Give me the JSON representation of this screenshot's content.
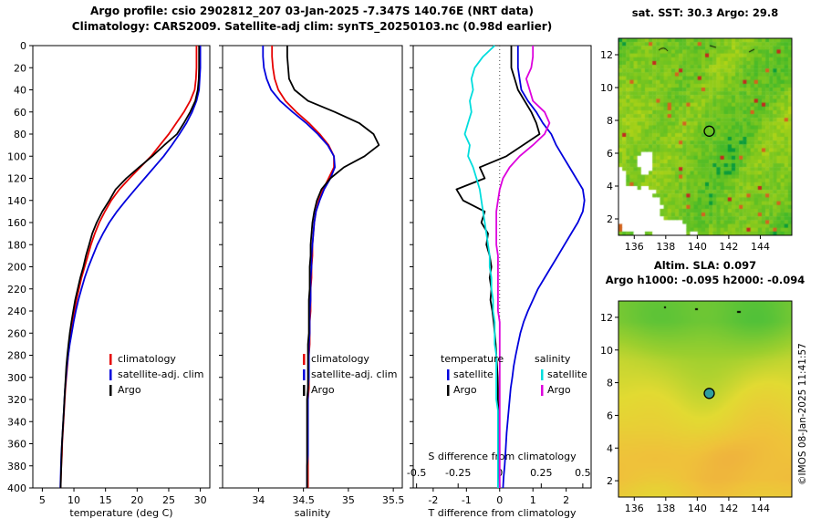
{
  "header": {
    "title_line1": "Argo profile: csio 2902812_207 03-Jan-2025 -7.347S 140.76E (NRT data)",
    "title_line2": "Climatology: CARS2009. Satellite-adj clim: synTS_20250103.nc (0.98d earlier)"
  },
  "watermark": "©IMOS 08-Jan-2025 11:41:57",
  "depths": [
    0,
    10,
    20,
    30,
    40,
    50,
    60,
    70,
    80,
    90,
    100,
    110,
    120,
    130,
    140,
    150,
    160,
    170,
    180,
    190,
    200,
    210,
    220,
    230,
    240,
    250,
    260,
    270,
    280,
    290,
    300,
    310,
    320,
    330,
    340,
    350,
    360,
    370,
    380,
    390,
    400
  ],
  "chart_data": [
    {
      "id": "temperature_profile",
      "type": "line",
      "xlabel": "temperature (deg C)",
      "xlim": [
        3.5,
        31.5
      ],
      "xticks": [
        5,
        10,
        15,
        20,
        25,
        30
      ],
      "ylim": [
        0,
        400
      ],
      "yticks": [
        0,
        20,
        40,
        60,
        80,
        100,
        120,
        140,
        160,
        180,
        200,
        220,
        240,
        260,
        280,
        300,
        320,
        340,
        360,
        380,
        400
      ],
      "legend": [
        {
          "label": "climatology",
          "color": "#e60000"
        },
        {
          "label": "satellite-adj. clim",
          "color": "#0000dd"
        },
        {
          "label": "Argo",
          "color": "#000000"
        }
      ],
      "series": [
        {
          "name": "climatology",
          "color": "#e60000",
          "values": [
            29.4,
            29.4,
            29.4,
            29.3,
            29.1,
            28.4,
            27.4,
            26.2,
            25.0,
            23.6,
            22.2,
            20.5,
            18.8,
            17.2,
            15.9,
            14.9,
            14.0,
            13.3,
            12.7,
            12.2,
            11.7,
            11.2,
            10.8,
            10.4,
            10.1,
            9.8,
            9.5,
            9.3,
            9.1,
            8.95,
            8.8,
            8.65,
            8.55,
            8.45,
            8.35,
            8.25,
            8.15,
            8.1,
            8.0,
            7.95,
            7.9
          ]
        },
        {
          "name": "satellite-adj. clim",
          "color": "#0000dd",
          "values": [
            30.0,
            30.0,
            30.0,
            29.9,
            29.8,
            29.4,
            28.7,
            27.8,
            26.7,
            25.5,
            24.2,
            22.7,
            21.2,
            19.7,
            18.2,
            16.8,
            15.6,
            14.6,
            13.7,
            13.0,
            12.3,
            11.7,
            11.2,
            10.7,
            10.3,
            9.95,
            9.65,
            9.35,
            9.1,
            8.9,
            8.75,
            8.6,
            8.5,
            8.4,
            8.3,
            8.2,
            8.1,
            8.0,
            7.95,
            7.9,
            7.85
          ]
        },
        {
          "name": "Argo",
          "color": "#000000",
          "values": [
            29.8,
            29.8,
            29.8,
            29.75,
            29.6,
            29.2,
            28.4,
            27.4,
            26.3,
            24.3,
            22.4,
            20.3,
            18.3,
            16.6,
            15.6,
            14.5,
            13.6,
            12.9,
            12.4,
            11.9,
            11.5,
            11.0,
            10.6,
            10.2,
            9.9,
            9.6,
            9.35,
            9.15,
            8.95,
            8.8,
            8.7,
            8.6,
            8.5,
            8.4,
            8.3,
            8.2,
            8.1,
            8.05,
            8.0,
            7.95,
            7.9
          ]
        }
      ]
    },
    {
      "id": "salinity_profile",
      "type": "line",
      "xlabel": "salinity",
      "xlim": [
        33.6,
        35.6
      ],
      "xticks": [
        34,
        34.5,
        35,
        35.5
      ],
      "ylim": [
        0,
        400
      ],
      "yticks": [
        0,
        20,
        40,
        60,
        80,
        100,
        120,
        140,
        160,
        180,
        200,
        220,
        240,
        260,
        280,
        300,
        320,
        340,
        360,
        380,
        400
      ],
      "legend": [
        {
          "label": "climatology",
          "color": "#e60000"
        },
        {
          "label": "satellite-adj. clim",
          "color": "#0000dd"
        },
        {
          "label": "Argo",
          "color": "#000000"
        }
      ],
      "series": [
        {
          "name": "climatology",
          "color": "#e60000",
          "values": [
            34.15,
            34.15,
            34.16,
            34.18,
            34.22,
            34.3,
            34.42,
            34.56,
            34.68,
            34.78,
            34.84,
            34.84,
            34.78,
            34.72,
            34.67,
            34.64,
            34.62,
            34.61,
            34.6,
            34.6,
            34.59,
            34.59,
            34.58,
            34.58,
            34.58,
            34.57,
            34.57,
            34.57,
            34.56,
            34.56,
            34.56,
            34.56,
            34.55,
            34.55,
            34.55,
            34.55,
            34.55,
            34.55,
            34.55,
            34.55,
            34.55
          ]
        },
        {
          "name": "satellite-adj. clim",
          "color": "#0000dd",
          "values": [
            34.05,
            34.05,
            34.06,
            34.09,
            34.14,
            34.24,
            34.38,
            34.53,
            34.66,
            34.77,
            34.84,
            34.85,
            34.8,
            34.73,
            34.68,
            34.64,
            34.62,
            34.61,
            34.6,
            34.59,
            34.59,
            34.58,
            34.58,
            34.58,
            34.57,
            34.57,
            34.57,
            34.56,
            34.56,
            34.56,
            34.56,
            34.55,
            34.55,
            34.55,
            34.55,
            34.55,
            34.55,
            34.55,
            34.54,
            34.54,
            34.54
          ]
        },
        {
          "name": "Argo",
          "color": "#000000",
          "values": [
            34.32,
            34.32,
            34.33,
            34.34,
            34.4,
            34.55,
            34.85,
            35.12,
            35.28,
            35.34,
            35.18,
            34.95,
            34.8,
            34.7,
            34.65,
            34.62,
            34.6,
            34.59,
            34.58,
            34.58,
            34.57,
            34.57,
            34.57,
            34.56,
            34.56,
            34.56,
            34.56,
            34.55,
            34.55,
            34.55,
            34.55,
            34.55,
            34.54,
            34.54,
            34.54,
            34.54,
            34.54,
            34.54,
            34.54,
            34.54,
            34.54
          ]
        }
      ]
    },
    {
      "id": "difference_profile",
      "type": "line",
      "xlabel": "T difference from climatology",
      "xlabel_top": "S difference from climatology",
      "xlim": [
        -2.6,
        2.75
      ],
      "xticks": [
        -2,
        -1,
        0,
        1,
        2
      ],
      "s_ticks": [
        -0.5,
        -0.25,
        0,
        0.25,
        0.5
      ],
      "s_scale": 5,
      "zero_line": true,
      "ylim": [
        0,
        400
      ],
      "yticks": [
        0,
        20,
        40,
        60,
        80,
        100,
        120,
        140,
        160,
        180,
        200,
        220,
        240,
        260,
        280,
        300,
        320,
        340,
        360,
        380,
        400
      ],
      "legend_groups": [
        {
          "title": "temperature",
          "entries": [
            {
              "label": "satellite",
              "color": "#0000dd"
            },
            {
              "label": "Argo",
              "color": "#000000"
            }
          ]
        },
        {
          "title": "salinity",
          "entries": [
            {
              "label": "satellite",
              "color": "#00dddd"
            },
            {
              "label": "Argo",
              "color": "#dd00dd"
            }
          ]
        }
      ],
      "series": [
        {
          "name": "temperature satellite",
          "axis": "T",
          "color": "#0000dd",
          "values": [
            0.55,
            0.55,
            0.55,
            0.6,
            0.65,
            0.85,
            1.1,
            1.3,
            1.55,
            1.7,
            1.9,
            2.1,
            2.3,
            2.5,
            2.55,
            2.5,
            2.35,
            2.15,
            1.95,
            1.75,
            1.55,
            1.35,
            1.15,
            1.0,
            0.85,
            0.72,
            0.62,
            0.55,
            0.48,
            0.42,
            0.38,
            0.33,
            0.3,
            0.27,
            0.24,
            0.21,
            0.19,
            0.17,
            0.15,
            0.12,
            0.1
          ]
        },
        {
          "name": "temperature Argo",
          "axis": "T",
          "color": "#000000",
          "values": [
            0.35,
            0.35,
            0.35,
            0.45,
            0.55,
            0.75,
            0.95,
            1.1,
            1.2,
            0.7,
            0.2,
            -0.6,
            -0.45,
            -1.3,
            -1.1,
            -0.45,
            -0.55,
            -0.35,
            -0.4,
            -0.3,
            -0.25,
            -0.3,
            -0.25,
            -0.28,
            -0.22,
            -0.18,
            -0.15,
            -0.12,
            -0.1,
            -0.08,
            -0.06,
            -0.05,
            -0.05,
            -0.04,
            -0.03,
            -0.03,
            -0.02,
            -0.02,
            -0.01,
            -0.01,
            0
          ]
        },
        {
          "name": "salinity satellite",
          "axis": "S",
          "color": "#00dddd",
          "values": [
            -0.03,
            -0.1,
            -0.15,
            -0.17,
            -0.16,
            -0.18,
            -0.17,
            -0.19,
            -0.21,
            -0.18,
            -0.19,
            -0.16,
            -0.14,
            -0.12,
            -0.11,
            -0.1,
            -0.09,
            -0.08,
            -0.07,
            -0.06,
            -0.06,
            -0.05,
            -0.05,
            -0.04,
            -0.04,
            -0.03,
            -0.03,
            -0.03,
            -0.02,
            -0.02,
            -0.02,
            -0.02,
            -0.02,
            -0.01,
            -0.01,
            -0.01,
            -0.01,
            -0.01,
            -0.01,
            -0.01,
            -0.01
          ]
        },
        {
          "name": "salinity Argo",
          "axis": "S",
          "color": "#dd00dd",
          "values": [
            0.2,
            0.2,
            0.19,
            0.16,
            0.18,
            0.2,
            0.27,
            0.3,
            0.27,
            0.2,
            0.12,
            0.06,
            0.02,
            0,
            -0.01,
            -0.02,
            -0.02,
            -0.02,
            -0.02,
            -0.01,
            -0.01,
            -0.01,
            -0.01,
            -0.01,
            -0.01,
            0,
            0,
            0,
            0,
            0,
            0,
            0,
            0,
            0,
            0,
            0,
            0,
            0,
            0,
            0,
            0
          ]
        }
      ]
    },
    {
      "id": "sst_map",
      "type": "heatmap",
      "title": "sat. SST: 30.3 Argo: 29.8",
      "xlim": [
        135,
        146
      ],
      "ylim": [
        1,
        13
      ],
      "xticks": [
        136,
        138,
        140,
        142,
        144
      ],
      "yticks": [
        2,
        4,
        6,
        8,
        10,
        12
      ],
      "marker": {
        "lon": 140.76,
        "lat": 7.347,
        "style": "open-circle",
        "color": "#000000"
      },
      "style": "pixelated",
      "palette": {
        "low": "#c2d813",
        "high": "#2db32d",
        "dark": "#0c9c3a",
        "accent": "#d2641e",
        "missing": "#ffffff"
      }
    },
    {
      "id": "sla_map",
      "type": "heatmap",
      "title_line1": "Altim. SLA: 0.097",
      "title_line2": "Argo h1000: -0.095 h2000: -0.094",
      "xlim": [
        135,
        146
      ],
      "ylim": [
        1,
        13
      ],
      "xticks": [
        136,
        138,
        140,
        142,
        144
      ],
      "yticks": [
        2,
        4,
        6,
        8,
        10,
        12
      ],
      "marker": {
        "lon": 140.76,
        "lat": 7.347,
        "style": "filled-circle",
        "color": "#2f9e9e"
      },
      "style": "smooth",
      "palette": [
        {
          "t": 0,
          "c": "#3dbd3b"
        },
        {
          "t": 0.38,
          "c": "#9ccf2e"
        },
        {
          "t": 0.58,
          "c": "#e2da32"
        },
        {
          "t": 0.78,
          "c": "#efc23a"
        },
        {
          "t": 1,
          "c": "#ee9b42"
        }
      ]
    }
  ]
}
